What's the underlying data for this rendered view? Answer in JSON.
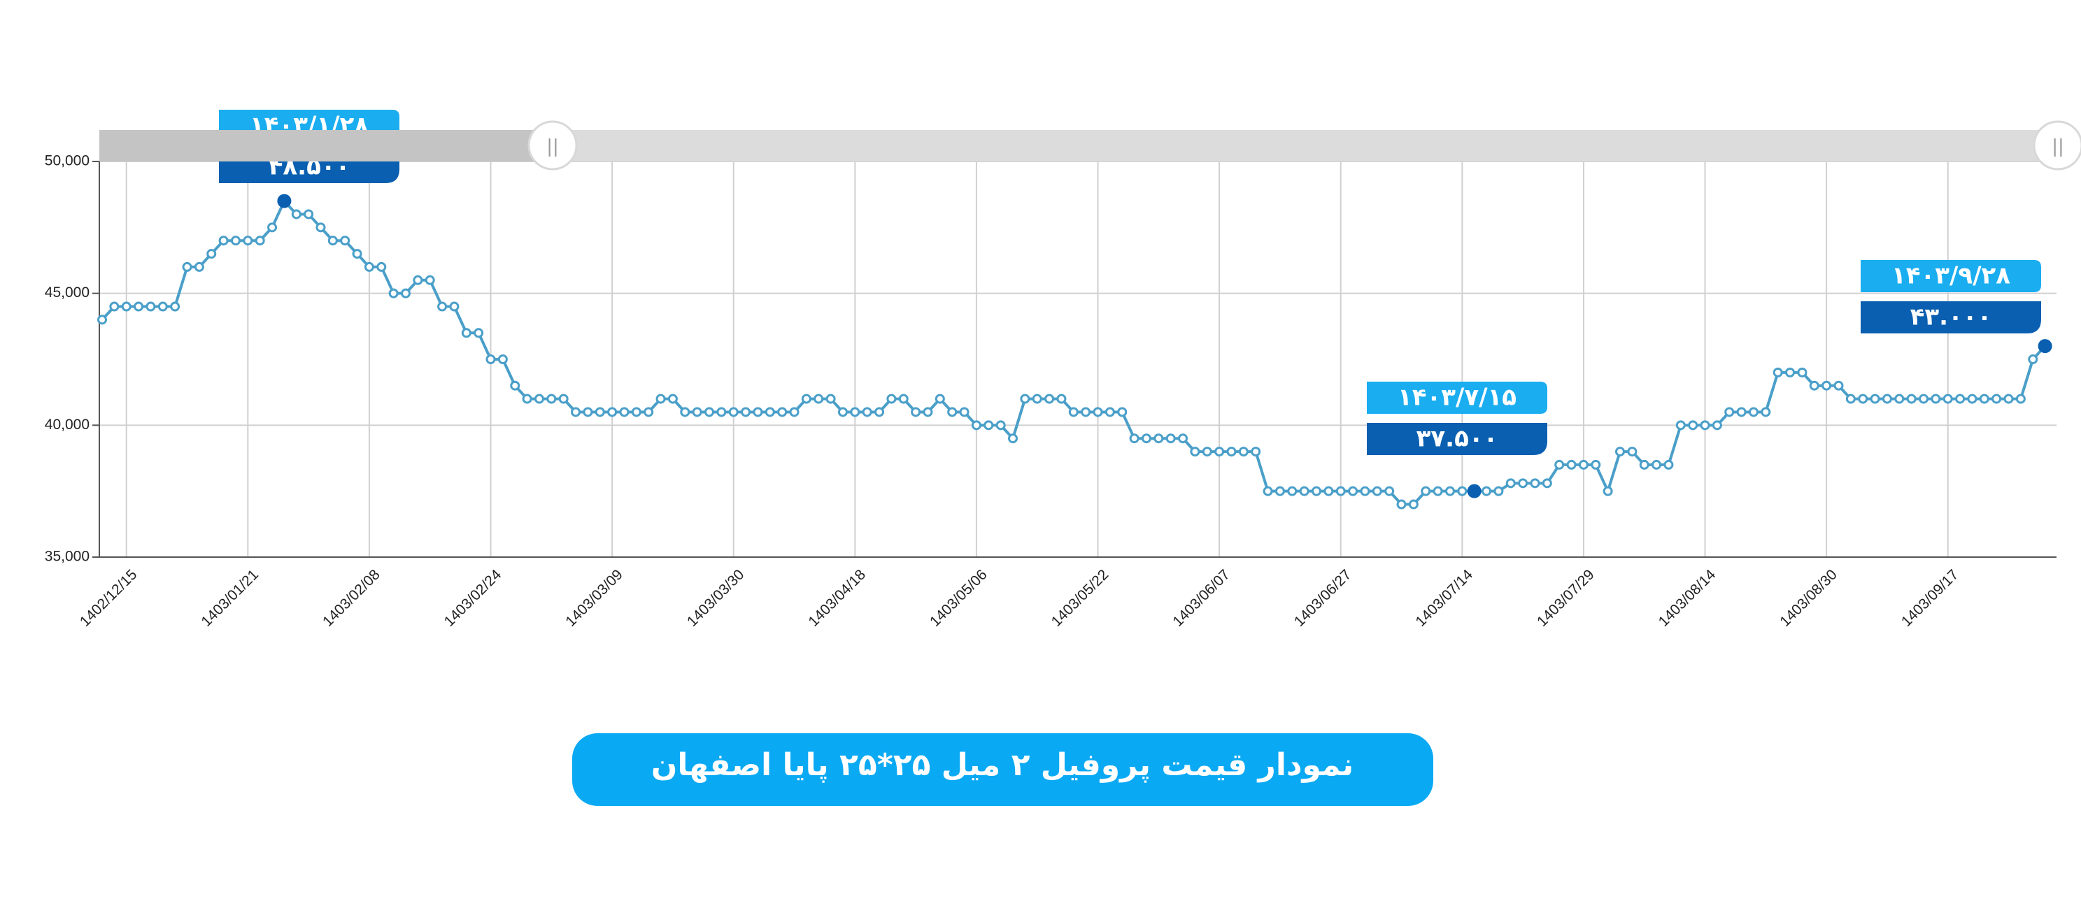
{
  "chart_data": {
    "type": "line",
    "title": "نمودار قیمت پروفیل ۲ میل ۲۵*۲۵ پایا اصفهان",
    "categories": [
      null,
      null,
      "1402/12/15",
      null,
      null,
      null,
      null,
      null,
      null,
      null,
      null,
      null,
      "1403/01/21",
      null,
      null,
      null,
      null,
      null,
      null,
      null,
      null,
      null,
      "1403/02/08",
      null,
      null,
      null,
      null,
      null,
      null,
      null,
      null,
      null,
      "1403/02/24",
      null,
      null,
      null,
      null,
      null,
      null,
      null,
      null,
      null,
      "1403/03/09",
      null,
      null,
      null,
      null,
      null,
      null,
      null,
      null,
      null,
      "1403/03/30",
      null,
      null,
      null,
      null,
      null,
      null,
      null,
      null,
      null,
      "1403/04/18",
      null,
      null,
      null,
      null,
      null,
      null,
      null,
      null,
      null,
      "1403/05/06",
      null,
      null,
      null,
      null,
      null,
      null,
      null,
      null,
      null,
      "1403/05/22",
      null,
      null,
      null,
      null,
      null,
      null,
      null,
      null,
      null,
      "1403/06/07",
      null,
      null,
      null,
      null,
      null,
      null,
      null,
      null,
      null,
      "1403/06/27",
      null,
      null,
      null,
      null,
      null,
      null,
      null,
      null,
      null,
      "1403/07/14",
      null,
      null,
      null,
      null,
      null,
      null,
      null,
      null,
      null,
      "1403/07/29",
      null,
      null,
      null,
      null,
      null,
      null,
      null,
      null,
      null,
      "1403/08/14",
      null,
      null,
      null,
      null,
      null,
      null,
      null,
      null,
      null,
      "1403/08/30",
      null,
      null,
      null,
      null,
      null,
      null,
      null,
      null,
      null,
      "1403/09/17",
      null,
      null,
      null,
      null,
      null,
      null,
      null,
      null
    ],
    "series": [
      {
        "color": "#4a9fc9",
        "values": [
          44000,
          44500,
          44500,
          44500,
          44500,
          44500,
          44500,
          46000,
          46000,
          46500,
          47000,
          47000,
          47000,
          47000,
          47500,
          48500,
          48000,
          48000,
          47500,
          47000,
          47000,
          46500,
          46000,
          46000,
          45000,
          45000,
          45500,
          45500,
          44500,
          44500,
          43500,
          43500,
          42500,
          42500,
          41500,
          41000,
          41000,
          41000,
          41000,
          40500,
          40500,
          40500,
          40500,
          40500,
          40500,
          40500,
          41000,
          41000,
          40500,
          40500,
          40500,
          40500,
          40500,
          40500,
          40500,
          40500,
          40500,
          40500,
          41000,
          41000,
          41000,
          40500,
          40500,
          40500,
          40500,
          41000,
          41000,
          40500,
          40500,
          41000,
          40500,
          40500,
          40000,
          40000,
          40000,
          39500,
          41000,
          41000,
          41000,
          41000,
          40500,
          40500,
          40500,
          40500,
          40500,
          39500,
          39500,
          39500,
          39500,
          39500,
          39000,
          39000,
          39000,
          39000,
          39000,
          39000,
          37500,
          37500,
          37500,
          37500,
          37500,
          37500,
          37500,
          37500,
          37500,
          37500,
          37500,
          37000,
          37000,
          37500,
          37500,
          37500,
          37500,
          37500,
          37500,
          37500,
          37800,
          37800,
          37800,
          37800,
          38500,
          38500,
          38500,
          38500,
          37500,
          39000,
          39000,
          38500,
          38500,
          38500,
          40000,
          40000,
          40000,
          40000,
          40500,
          40500,
          40500,
          40500,
          42000,
          42000,
          42000,
          41500,
          41500,
          41500,
          41000,
          41000,
          41000,
          41000,
          41000,
          41000,
          41000,
          41000,
          41000,
          41000,
          41000,
          41000,
          41000,
          41000,
          41000,
          42500,
          43000
        ]
      }
    ],
    "ylim": [
      35000,
      50000
    ],
    "yticks": [
      {
        "value": 35000,
        "label": "35,000"
      },
      {
        "value": 40000,
        "label": "40,000"
      },
      {
        "value": 45000,
        "label": "45,000"
      },
      {
        "value": 50000,
        "label": "50,000"
      }
    ],
    "grid": true,
    "annotations": [
      {
        "date": "۱۴۰۳/۱/۲۸",
        "price": "۴۸.۵۰۰"
      },
      {
        "date": "۱۴۰۳/۷/۱۵",
        "price": "۳۷.۵۰۰"
      },
      {
        "date": "۱۴۰۳/۹/۲۸",
        "price": "۴۳.۰۰۰"
      }
    ]
  }
}
